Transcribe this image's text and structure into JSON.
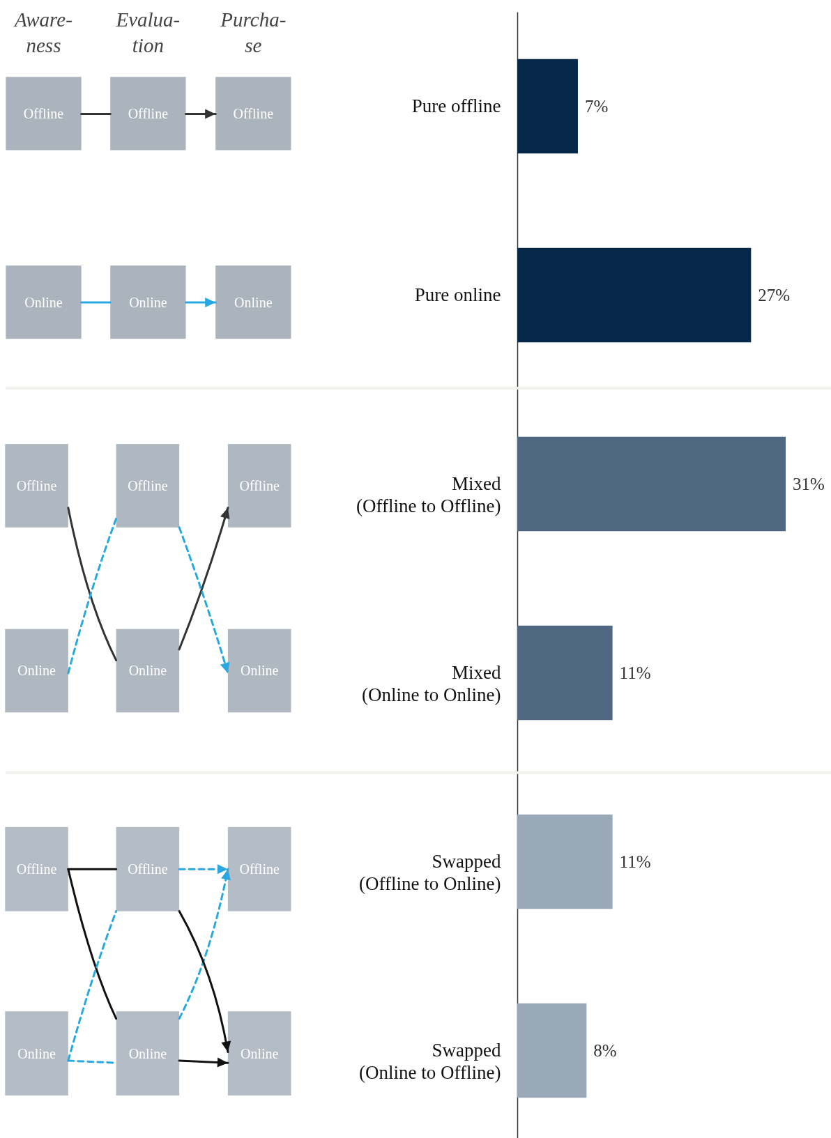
{
  "chart_data": {
    "type": "bar",
    "orientation": "horizontal",
    "categories": [
      "Pure offline",
      "Pure online",
      "Mixed (Offline to Offline)",
      "Mixed (Online to Online)",
      "Swapped (Offline to Online)",
      "Swapped (Online to Offline)"
    ],
    "values": [
      7,
      27,
      31,
      11,
      11,
      8
    ],
    "colors": [
      "#052849",
      "#052849",
      "#4f6780",
      "#4f6780",
      "#9aa9b7",
      "#9aa9b7"
    ],
    "value_labels": [
      "7%",
      "27%",
      "31%",
      "11%",
      "11%",
      "8%"
    ],
    "annotations": [
      "Aware-ness",
      "Evalua-tion",
      "Purcha-se",
      "Offline",
      "Online"
    ]
  }
}
